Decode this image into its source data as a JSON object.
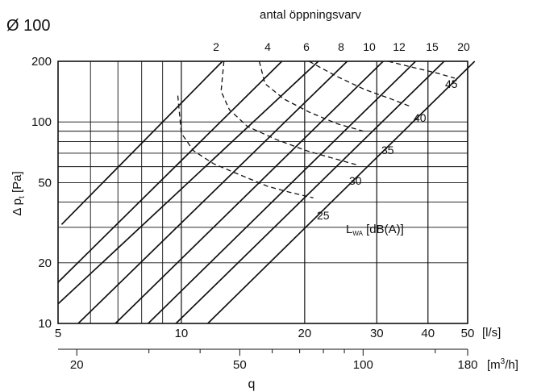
{
  "chart_data": {
    "type": "line",
    "title": "Ø 100",
    "top_axis_label": "antal öppningsvarv",
    "ylabel": "Δ p",
    "ylabel_sub": "t",
    "ylabel_unit": "[Pa]",
    "xlabel": "q",
    "x_unit": "[l/s]",
    "x2_unit_prefix": "[m",
    "x2_unit_sup": "3",
    "x2_unit_suffix": "/h]",
    "xscale": "log",
    "yscale": "log",
    "xlim": [
      5,
      50
    ],
    "ylim": [
      10,
      200
    ],
    "x_ticks": [
      "5",
      "10",
      "20",
      "30",
      "40",
      "50"
    ],
    "x2_ticks": [
      "20",
      "50",
      "100",
      "180"
    ],
    "y_ticks": [
      "10",
      "20",
      "50",
      "100",
      "200"
    ],
    "grid": true,
    "opening_turns": [
      "2",
      "4",
      "6",
      "8",
      "10",
      "12",
      "15",
      "20"
    ],
    "sound_label": "L",
    "sound_label_sub": "WA",
    "sound_label_unit": "[dB(A)]",
    "sound_levels": [
      "25",
      "30",
      "35",
      "40",
      "45"
    ],
    "series": [
      {
        "label": "2",
        "x": [
          5.1,
          12.6
        ],
        "y": [
          31,
          200
        ]
      },
      {
        "label": "4",
        "x": [
          5.0,
          17.6
        ],
        "y": [
          16,
          200
        ]
      },
      {
        "label": "6",
        "x": [
          5.0,
          21.6
        ],
        "y": [
          12.5,
          200
        ]
      },
      {
        "label": "8",
        "x": [
          5.6,
          25.4
        ],
        "y": [
          10,
          200
        ]
      },
      {
        "label": "10",
        "x": [
          6.9,
          31.1
        ],
        "y": [
          10,
          200
        ]
      },
      {
        "label": "12",
        "x": [
          8.3,
          37.3
        ],
        "y": [
          10,
          200
        ]
      },
      {
        "label": "15",
        "x": [
          9.7,
          43.8
        ],
        "y": [
          10,
          200
        ]
      },
      {
        "label": "20",
        "x": [
          11.6,
          52.0
        ],
        "y": [
          10,
          200
        ]
      }
    ],
    "sound_curves": [
      {
        "label": "25",
        "x": [
          9.8,
          10.0,
          10.7,
          12.0,
          13.8,
          16.2,
          18.2,
          21.0
        ],
        "y": [
          135,
          88,
          72,
          62,
          55,
          48,
          45,
          42
        ]
      },
      {
        "label": "30",
        "x": [
          12.7,
          12.5,
          13.1,
          14.5,
          17.0,
          20.2,
          23.5,
          27.0
        ],
        "y": [
          200,
          142,
          115,
          95,
          82,
          72,
          66,
          61
        ]
      },
      {
        "label": "35",
        "x": [
          15.5,
          16.0,
          17.8,
          20.5,
          24.0,
          27.8
        ],
        "y": [
          200,
          155,
          130,
          112,
          98,
          90
        ]
      },
      {
        "label": "40",
        "x": [
          20.5,
          24.0,
          28.0,
          32.5,
          36.0
        ],
        "y": [
          200,
          168,
          145,
          130,
          120
        ]
      },
      {
        "label": "45",
        "x": [
          32.0,
          37.0,
          42.0,
          46.5
        ],
        "y": [
          200,
          186,
          175,
          165
        ]
      }
    ]
  }
}
